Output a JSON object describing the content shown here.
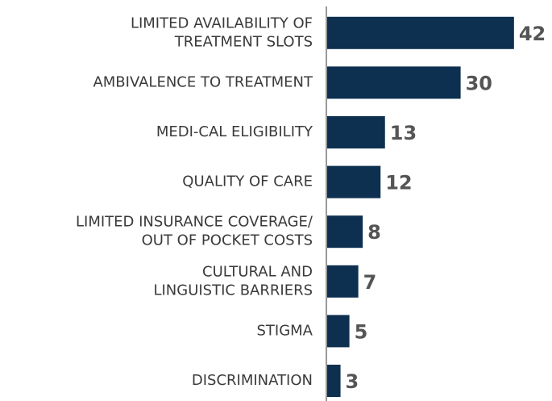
{
  "chart_data": {
    "type": "bar",
    "orientation": "horizontal",
    "categories": [
      [
        "LIMITED AVAILABILITY OF",
        "TREATMENT SLOTS"
      ],
      [
        "AMBIVALENCE TO TREATMENT"
      ],
      [
        "MEDI-CAL ELIGIBILITY"
      ],
      [
        "QUALITY OF CARE"
      ],
      [
        "LIMITED INSURANCE COVERAGE/",
        "OUT OF POCKET COSTS"
      ],
      [
        "CULTURAL AND",
        "LINGUISTIC BARRIERS"
      ],
      [
        "STIGMA"
      ],
      [
        "DISCRIMINATION"
      ]
    ],
    "values": [
      42,
      30,
      13,
      12,
      8,
      7,
      5,
      3
    ],
    "color": "#0d3050"
  }
}
